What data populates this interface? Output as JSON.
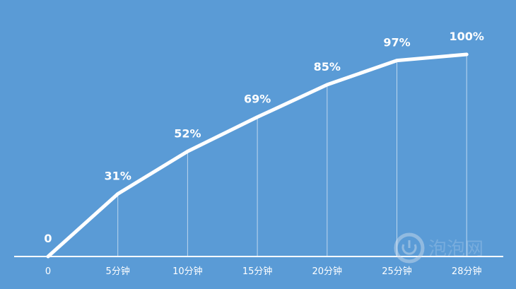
{
  "chart_data": {
    "type": "line",
    "categories": [
      "0",
      "5分钟",
      "10分钟",
      "15分钟",
      "20分钟",
      "25分钟",
      "28分钟"
    ],
    "values": [
      0,
      31,
      52,
      69,
      85,
      97,
      100
    ],
    "value_labels": [
      "0",
      "31%",
      "52%",
      "69%",
      "85%",
      "97%",
      "100%"
    ],
    "color": "#ffffff",
    "ylim": [
      0,
      100
    ],
    "watermark": "泡泡网"
  }
}
